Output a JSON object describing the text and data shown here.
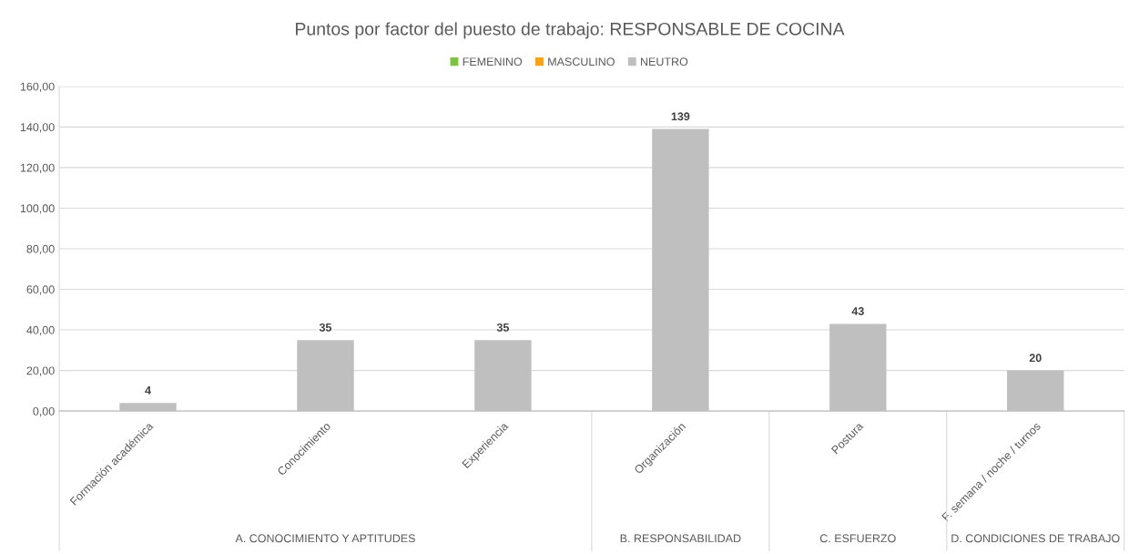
{
  "chart_data": {
    "type": "bar",
    "title": "Puntos por factor del puesto de trabajo: RESPONSABLE DE COCINA",
    "categories": [
      "Formación académica",
      "Conocimiento",
      "Experiencia",
      "Organización",
      "Postura",
      "F. semana / noche / turnos"
    ],
    "series": [
      {
        "name": "FEMENINO",
        "color": "#7dc242",
        "values": [
          null,
          null,
          null,
          null,
          null,
          null
        ]
      },
      {
        "name": "MASCULINO",
        "color": "#f7a21b",
        "values": [
          null,
          null,
          null,
          null,
          null,
          null
        ]
      },
      {
        "name": "NEUTRO",
        "color": "#bfbfbf",
        "values": [
          4,
          35,
          35,
          139,
          43,
          20
        ]
      }
    ],
    "data_labels": true,
    "ylim": [
      0,
      160
    ],
    "yticks": [
      {
        "value": 0,
        "label": "0,00"
      },
      {
        "value": 20,
        "label": "20,00"
      },
      {
        "value": 40,
        "label": "40,00"
      },
      {
        "value": 60,
        "label": "60,00"
      },
      {
        "value": 80,
        "label": "80,00"
      },
      {
        "value": 100,
        "label": "100,00"
      },
      {
        "value": 120,
        "label": "120,00"
      },
      {
        "value": 140,
        "label": "140,00"
      },
      {
        "value": 160,
        "label": "160,00"
      }
    ],
    "grid": "y",
    "legend": "top",
    "annotations": [
      "A. CONOCIMIENTO Y APTITUDES",
      "B. RESPONSABILIDAD",
      "C. ESFUERZO",
      "D. CONDICIONES DE TRABAJO"
    ]
  }
}
